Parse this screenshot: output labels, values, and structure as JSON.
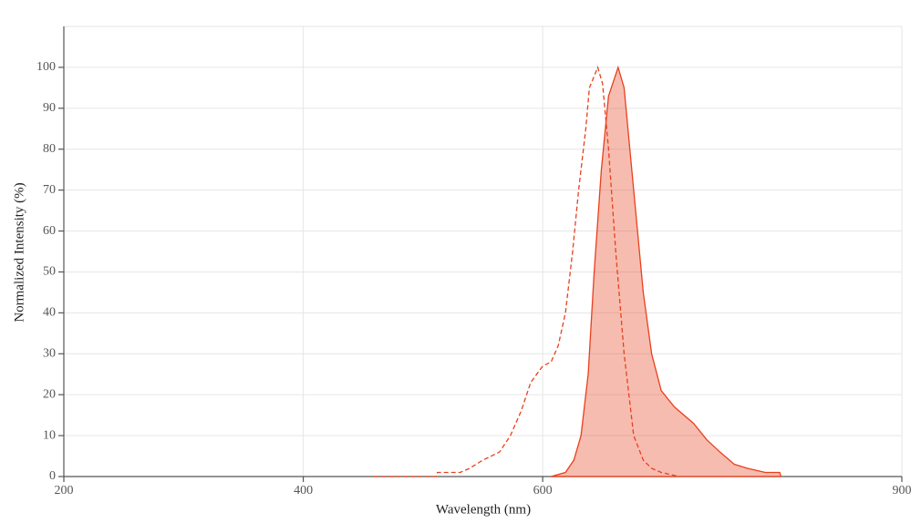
{
  "chart_data": {
    "type": "line",
    "x_label": "Wavelength (nm)",
    "y_label": "Normalized Intensity (%)",
    "xlim": [
      200,
      900
    ],
    "xticks": [
      200,
      400,
      600,
      900
    ],
    "ylim": [
      0,
      110
    ],
    "yticks": [
      0,
      10,
      20,
      30,
      40,
      50,
      60,
      70,
      80,
      90,
      100
    ],
    "grid": true,
    "series": [
      {
        "color": "#e8401c",
        "dashed": true,
        "filled": false,
        "x": [
          459,
          511,
          512,
          531,
          539,
          550,
          564,
          573,
          582,
          590,
          600,
          607,
          613,
          619,
          625,
          630,
          636,
          639,
          646,
          650,
          655,
          661,
          668,
          676,
          684,
          691,
          699,
          714
        ],
        "values": [
          0,
          0,
          1,
          1,
          2,
          4,
          6,
          10,
          16,
          23,
          27,
          28,
          32,
          40,
          55,
          70,
          85,
          95,
          100,
          96,
          80,
          55,
          30,
          10,
          4,
          2,
          1,
          0
        ]
      },
      {
        "color": "#e8401c",
        "dashed": false,
        "filled": true,
        "x": [
          607,
          619,
          626,
          632,
          638,
          643,
          649,
          655,
          663,
          668,
          676,
          684,
          691,
          699,
          710,
          726,
          737,
          748,
          760,
          771,
          786,
          798,
          799
        ],
        "values": [
          0,
          1,
          4,
          10,
          25,
          50,
          75,
          93,
          100,
          95,
          70,
          45,
          30,
          21,
          17,
          13,
          9,
          6,
          3,
          2,
          1,
          1,
          0
        ]
      }
    ]
  }
}
